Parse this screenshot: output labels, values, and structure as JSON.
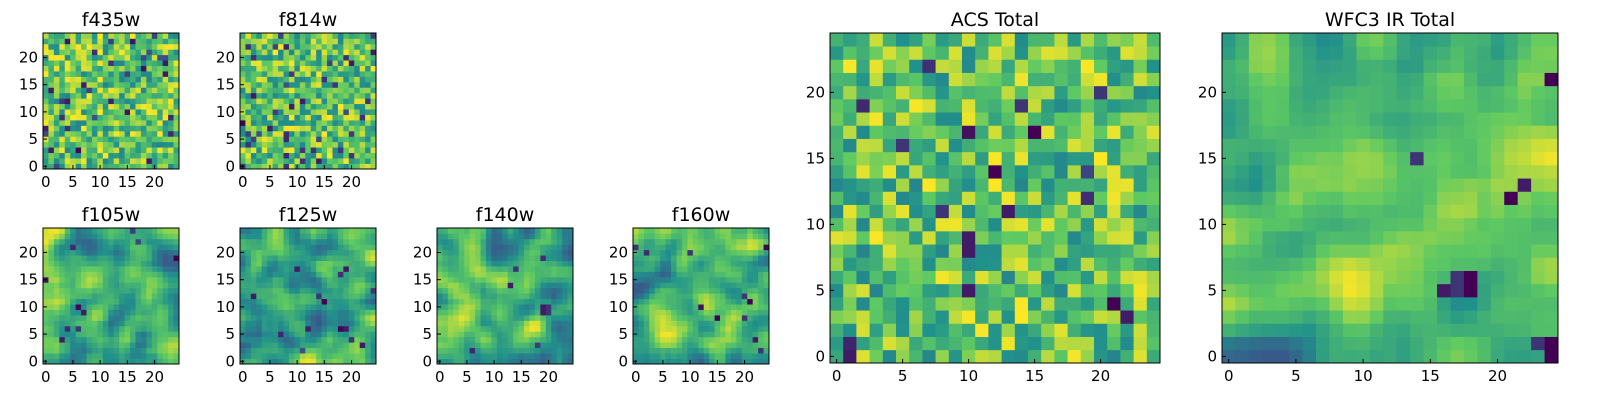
{
  "chart_data": [
    {
      "type": "heatmap",
      "title": "f435w",
      "xticks": [
        0,
        5,
        10,
        15,
        20
      ],
      "yticks": [
        0,
        5,
        10,
        15,
        20
      ],
      "xlim": [
        0,
        25
      ],
      "ylim": [
        0,
        25
      ],
      "grid_size": 25,
      "style": "pixel",
      "seed": 11,
      "dark_rate": 0.05,
      "dark_cells": [
        [
          6,
          3
        ],
        [
          1,
          14
        ],
        [
          4,
          12
        ],
        [
          19,
          1
        ]
      ]
    },
    {
      "type": "heatmap",
      "title": "f814w",
      "xticks": [
        0,
        5,
        10,
        15,
        20
      ],
      "yticks": [
        0,
        5,
        10,
        15,
        20
      ],
      "xlim": [
        0,
        25
      ],
      "ylim": [
        0,
        25
      ],
      "grid_size": 25,
      "style": "pixel",
      "seed": 23,
      "dark_rate": 0.05,
      "dark_cells": [
        [
          0,
          8
        ],
        [
          20,
          2
        ],
        [
          17,
          15
        ]
      ]
    },
    {
      "type": "heatmap",
      "title": "f105w",
      "xticks": [
        0,
        5,
        10,
        15,
        20
      ],
      "yticks": [
        0,
        5,
        10,
        15,
        20
      ],
      "xlim": [
        0,
        25
      ],
      "ylim": [
        0,
        25
      ],
      "grid_size": 25,
      "style": "smooth",
      "seed": 37,
      "dark_rate": 0.01,
      "dark_cells": [
        [
          24,
          19
        ],
        [
          6,
          10
        ],
        [
          7,
          9
        ]
      ]
    },
    {
      "type": "heatmap",
      "title": "f125w",
      "xticks": [
        0,
        5,
        10,
        15,
        20
      ],
      "yticks": [
        0,
        5,
        10,
        15,
        20
      ],
      "xlim": [
        0,
        25
      ],
      "ylim": [
        0,
        25
      ],
      "grid_size": 25,
      "style": "smooth",
      "seed": 41,
      "dark_rate": 0.01,
      "dark_cells": [
        [
          14,
          12
        ],
        [
          15,
          11
        ],
        [
          19,
          6
        ],
        [
          18,
          6
        ],
        [
          22,
          3
        ]
      ]
    },
    {
      "type": "heatmap",
      "title": "f140w",
      "xticks": [
        0,
        5,
        10,
        15,
        20
      ],
      "yticks": [
        0,
        5,
        10,
        15,
        20
      ],
      "xlim": [
        0,
        25
      ],
      "ylim": [
        0,
        25
      ],
      "grid_size": 25,
      "style": "smooth",
      "seed": 53,
      "dark_rate": 0.01,
      "dark_cells": [
        [
          19,
          10
        ],
        [
          20,
          10
        ],
        [
          19,
          9
        ],
        [
          20,
          9
        ],
        [
          14,
          17
        ],
        [
          13,
          14
        ]
      ]
    },
    {
      "type": "heatmap",
      "title": "f160w",
      "xticks": [
        0,
        5,
        10,
        15,
        20
      ],
      "yticks": [
        0,
        5,
        10,
        15,
        20
      ],
      "xlim": [
        0,
        25
      ],
      "ylim": [
        0,
        25
      ],
      "grid_size": 25,
      "style": "smooth",
      "seed": 67,
      "dark_rate": 0.01,
      "dark_cells": [
        [
          24,
          21
        ],
        [
          20,
          12
        ],
        [
          21,
          11
        ],
        [
          22,
          4
        ],
        [
          23,
          2
        ],
        [
          15,
          8
        ]
      ]
    },
    {
      "type": "heatmap",
      "title": "ACS Total",
      "xticks": [
        0,
        5,
        10,
        15,
        20
      ],
      "yticks": [
        0,
        5,
        10,
        15,
        20
      ],
      "xlim": [
        0,
        25
      ],
      "ylim": [
        0,
        25
      ],
      "grid_size": 25,
      "style": "pixel",
      "seed": 79,
      "dark_rate": 0.02,
      "dark_cells": [
        [
          14,
          19
        ],
        [
          20,
          20
        ],
        [
          15,
          17
        ],
        [
          5,
          16
        ],
        [
          12,
          14
        ],
        [
          13,
          11
        ],
        [
          10,
          9
        ],
        [
          10,
          8
        ],
        [
          10,
          5
        ],
        [
          21,
          4
        ],
        [
          1,
          0
        ],
        [
          8,
          11
        ],
        [
          22,
          3
        ]
      ]
    },
    {
      "type": "heatmap",
      "title": "WFC3 IR Total",
      "xticks": [
        0,
        5,
        10,
        15,
        20
      ],
      "yticks": [
        0,
        5,
        10,
        15,
        20
      ],
      "xlim": [
        0,
        25
      ],
      "ylim": [
        0,
        25
      ],
      "grid_size": 25,
      "style": "smooth",
      "seed": 97,
      "dark_rate": 0.0,
      "dark_cells": [
        [
          24,
          21
        ],
        [
          14,
          15
        ],
        [
          17,
          6
        ],
        [
          18,
          6
        ],
        [
          16,
          5
        ],
        [
          17,
          5
        ],
        [
          18,
          5
        ],
        [
          23,
          1
        ],
        [
          24,
          1
        ],
        [
          24,
          0
        ],
        [
          21,
          12
        ],
        [
          22,
          13
        ]
      ]
    }
  ],
  "colormap": [
    "#440154",
    "#3b528b",
    "#21918c",
    "#5ec962",
    "#fde725"
  ]
}
